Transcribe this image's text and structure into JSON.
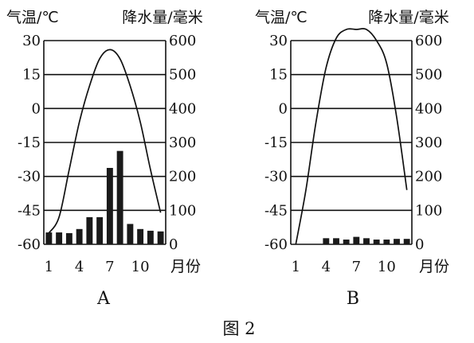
{
  "figure_caption": "图 2",
  "chart_data": [
    {
      "type": "bar",
      "panel_label": "A",
      "left_axis_label": "气温/℃",
      "right_axis_label": "降水量/毫米",
      "x_tick_labels": [
        "1",
        "4",
        "7",
        "10"
      ],
      "x_unit_label": "月份",
      "left_ticks": [
        "30",
        "15",
        "0",
        "-15",
        "-30",
        "-45",
        "-60"
      ],
      "right_ticks": [
        "600",
        "500",
        "400",
        "300",
        "200",
        "100",
        "0"
      ],
      "ylim_temperature": [
        -60,
        30
      ],
      "ylim_precipitation": [
        0,
        600
      ],
      "grid": true,
      "months": [
        1,
        2,
        3,
        4,
        5,
        6,
        7,
        8,
        9,
        10,
        11,
        12
      ],
      "precipitation_mm": [
        35,
        35,
        33,
        45,
        80,
        80,
        225,
        275,
        60,
        45,
        40,
        38
      ],
      "temperature_c": [
        -55,
        -48,
        -27,
        -6,
        10,
        22,
        26,
        22,
        10,
        -6,
        -27,
        -46
      ]
    },
    {
      "type": "bar",
      "panel_label": "B",
      "left_axis_label": "气温/℃",
      "right_axis_label": "降水量/毫米",
      "x_tick_labels": [
        "1",
        "4",
        "7",
        "10"
      ],
      "x_unit_label": "月份",
      "left_ticks": [
        "30",
        "15",
        "0",
        "-15",
        "-30",
        "-45",
        "-60"
      ],
      "right_ticks": [
        "600",
        "500",
        "400",
        "300",
        "200",
        "100",
        "0"
      ],
      "ylim_temperature": [
        -60,
        30
      ],
      "ylim_precipitation": [
        0,
        600
      ],
      "grid": true,
      "months": [
        1,
        2,
        3,
        4,
        5,
        6,
        7,
        8,
        9,
        10,
        11,
        12
      ],
      "precipitation_mm": [
        0,
        0,
        0,
        18,
        18,
        14,
        22,
        18,
        14,
        14,
        16,
        16
      ],
      "temperature_c": [
        -62,
        -36,
        -6,
        18,
        31,
        38,
        42,
        38,
        30,
        20,
        -4,
        -36
      ]
    }
  ]
}
